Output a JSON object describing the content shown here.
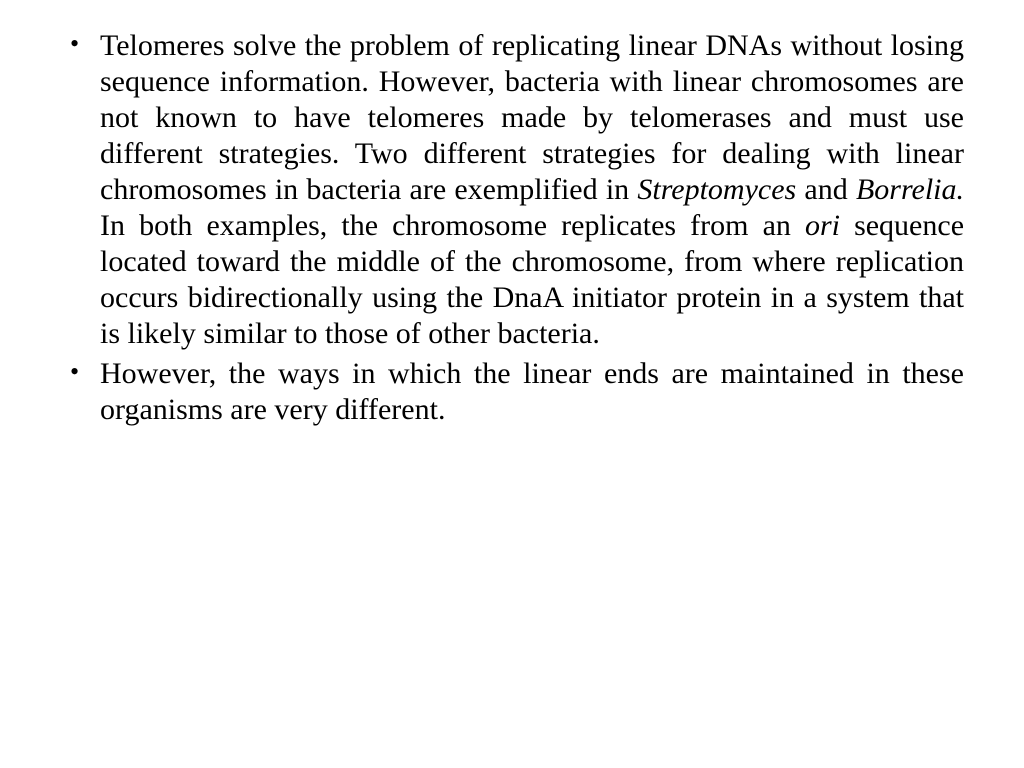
{
  "slide": {
    "background_color": "#ffffff",
    "text_color": "#000000",
    "font_family": "Times New Roman",
    "font_size_pt": 24,
    "bullets": [
      {
        "segments": [
          {
            "text": "Telomeres solve the problem of replicating linear DNAs without losing sequence information. However, bacteria with linear chromosomes are not known to have telomeres made by telomerases and must use different strategies. Two different strategies for dealing with linear chromosomes in bacteria are exemplified in ",
            "italic": false
          },
          {
            "text": "Streptomyces",
            "italic": true
          },
          {
            "text": " and ",
            "italic": false
          },
          {
            "text": "Borrelia.",
            "italic": true
          },
          {
            "text": " In both examples, the chromosome replicates from an ",
            "italic": false
          },
          {
            "text": "ori",
            "italic": true
          },
          {
            "text": " sequence located toward the middle of the chromosome, from where replication occurs bidirectionally using the DnaA initiator protein in a system that is likely similar to those of other bacteria.",
            "italic": false
          }
        ]
      },
      {
        "segments": [
          {
            "text": "However, the ways in which the linear ends are maintained in these organisms are very different.",
            "italic": false
          }
        ]
      }
    ]
  }
}
